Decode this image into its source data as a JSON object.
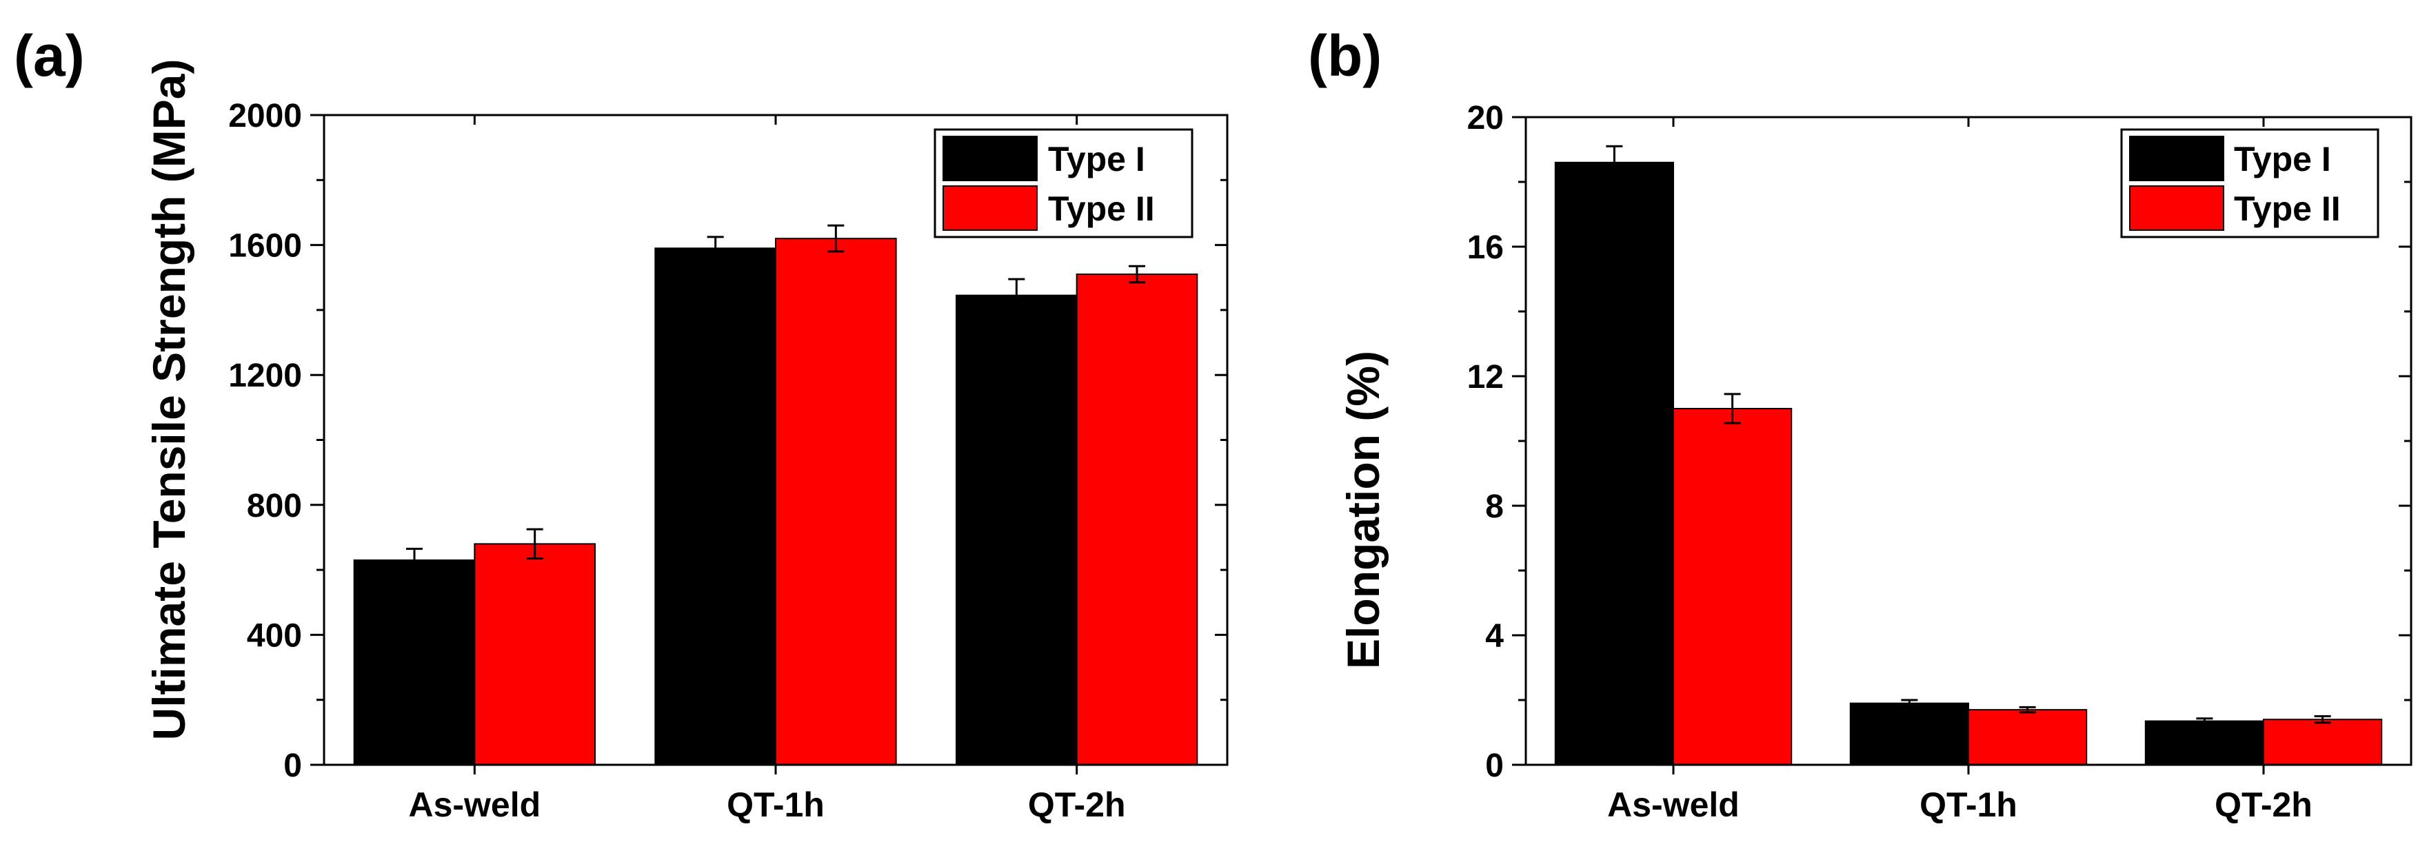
{
  "chart_data": [
    {
      "type": "bar",
      "panel_label": "(a)",
      "title": "",
      "xlabel": "",
      "ylabel": "Ultimate Tensile Strength (MPa)",
      "ylim": [
        0,
        2000
      ],
      "yticks": [
        0,
        400,
        800,
        1200,
        1600,
        2000
      ],
      "categories": [
        "As-weld",
        "QT-1h",
        "QT-2h"
      ],
      "series": [
        {
          "name": "Type I",
          "color": "#000000",
          "values": [
            630,
            1590,
            1445
          ],
          "errors": [
            35,
            35,
            50
          ]
        },
        {
          "name": "Type II",
          "color": "#ff0000",
          "values": [
            680,
            1620,
            1510
          ],
          "errors": [
            45,
            40,
            25
          ]
        }
      ],
      "legend_position": "top-right"
    },
    {
      "type": "bar",
      "panel_label": "(b)",
      "title": "",
      "xlabel": "",
      "ylabel": "Elongation (%)",
      "ylim": [
        0,
        20
      ],
      "yticks": [
        0,
        4,
        8,
        12,
        16,
        20
      ],
      "categories": [
        "As-weld",
        "QT-1h",
        "QT-2h"
      ],
      "series": [
        {
          "name": "Type I",
          "color": "#000000",
          "values": [
            18.6,
            1.9,
            1.35
          ],
          "errors": [
            0.5,
            0.1,
            0.08
          ]
        },
        {
          "name": "Type II",
          "color": "#ff0000",
          "values": [
            11.0,
            1.7,
            1.4
          ],
          "errors": [
            0.45,
            0.08,
            0.1
          ]
        }
      ],
      "legend_position": "top-right"
    }
  ]
}
